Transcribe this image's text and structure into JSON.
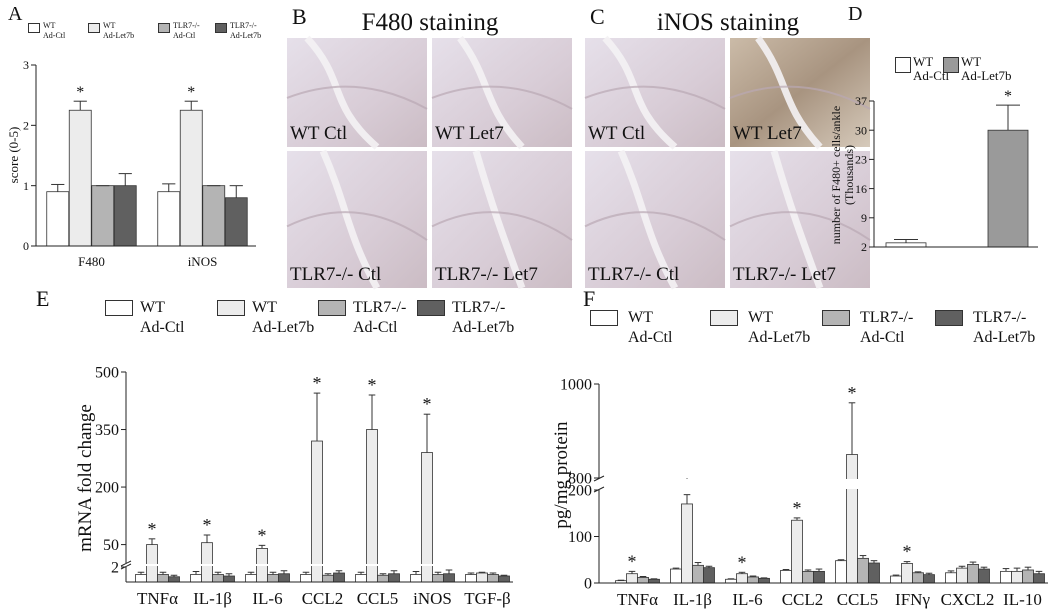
{
  "chart_data": [
    {
      "type": "bar",
      "label": "A",
      "ylabel": "score (0-5)",
      "categories": [
        "F480",
        "iNOS"
      ],
      "ylim": [
        0,
        3
      ],
      "yticks": [
        0,
        1,
        2,
        3
      ],
      "series": [
        {
          "name": "WT\nAd-Ctl",
          "color": "#ffffff",
          "values": [
            0.9,
            0.9
          ],
          "errors": [
            0.12,
            0.13
          ]
        },
        {
          "name": "WT\nAd-Let7b",
          "color": "#ececec",
          "values": [
            2.25,
            2.25
          ],
          "errors": [
            0.15,
            0.15
          ],
          "significance": [
            "*",
            "*"
          ]
        },
        {
          "name": "TLR7-/-\nAd-Ctl",
          "color": "#b4b4b4",
          "values": [
            1.0,
            1.0
          ],
          "errors": [
            0,
            0
          ]
        },
        {
          "name": "TLR7-/-\nAd-Let7b",
          "color": "#606060",
          "values": [
            1.0,
            0.8
          ],
          "errors": [
            0.2,
            0.2
          ]
        }
      ]
    },
    {
      "type": "bar",
      "label": "D",
      "ylabel": "number of F480+ cells/ankle\n(Thousands)",
      "categories": [
        null
      ],
      "ylim": [
        2,
        37
      ],
      "yticks": [
        2,
        9,
        16,
        23,
        30,
        37
      ],
      "series": [
        {
          "name": "WT\nAd-Ctl",
          "color": "#ffffff",
          "values": [
            3
          ],
          "errors": [
            0.8
          ]
        },
        {
          "name": "WT\nAd-Let7b",
          "color": "#9a9a9a",
          "values": [
            30
          ],
          "errors": [
            6
          ],
          "significance": [
            "*"
          ]
        }
      ]
    },
    {
      "type": "bar",
      "label": "E",
      "ylabel": "mRNA fold change",
      "categories": [
        "TNFα",
        "IL-1β",
        "IL-6",
        "CCL2",
        "CCL5",
        "iNOS",
        "TGF-β"
      ],
      "ylim": [
        0,
        500
      ],
      "ybreak": [
        2,
        2
      ],
      "yticks": [
        2,
        50,
        200,
        350,
        500
      ],
      "series": [
        {
          "name": "WT\nAd-Ctl",
          "color": "#ffffff",
          "values": [
            1,
            1,
            1,
            1,
            1,
            1,
            1
          ],
          "errors": [
            0.3,
            0.4,
            0.3,
            0.3,
            0.3,
            0.4,
            0.2
          ]
        },
        {
          "name": "WT\nAd-Let7b",
          "color": "#ececec",
          "values": [
            50,
            55,
            40,
            320,
            350,
            290,
            1.2
          ],
          "errors": [
            15,
            20,
            8,
            125,
            90,
            100,
            0.1
          ],
          "significance": [
            "*",
            "*",
            "*",
            "*",
            "*",
            "*",
            null
          ]
        },
        {
          "name": "TLR7-/-\nAd-Ctl",
          "color": "#b4b4b4",
          "values": [
            1,
            1,
            1,
            0.9,
            0.9,
            1,
            1
          ],
          "errors": [
            0.3,
            0.3,
            0.3,
            0.2,
            0.2,
            0.3,
            0.2
          ]
        },
        {
          "name": "TLR7-/-\nAd-Let7b",
          "color": "#606060",
          "values": [
            0.7,
            0.8,
            1.1,
            1.2,
            1.1,
            1.1,
            0.8
          ],
          "errors": [
            0.2,
            0.3,
            0.4,
            0.3,
            0.4,
            0.5,
            0.1
          ]
        }
      ]
    },
    {
      "type": "bar",
      "label": "F",
      "ylabel": "pg/mg protein",
      "categories": [
        "TNFα",
        "IL-1β",
        "IL-6",
        "CCL2",
        "CCL5",
        "IFNγ",
        "CXCL2",
        "IL-10"
      ],
      "ylim": [
        0,
        1000
      ],
      "ybreak": [
        200,
        800
      ],
      "yticks": [
        0,
        100,
        200,
        800,
        1000
      ],
      "series": [
        {
          "name": "WT\nAd-Ctl",
          "color": "#ffffff",
          "values": [
            5,
            30,
            8,
            27,
            48,
            15,
            22,
            25
          ],
          "errors": [
            1,
            2,
            1,
            2,
            2,
            2,
            4,
            6
          ]
        },
        {
          "name": "WT\nAd-Let7b",
          "color": "#ececec",
          "values": [
            20,
            170,
            20,
            135,
            850,
            42,
            32,
            25
          ],
          "errors": [
            5,
            20,
            3,
            5,
            110,
            4,
            4,
            7
          ],
          "significance": [
            "*",
            "*",
            "*",
            "*",
            "*",
            "*",
            null,
            null
          ]
        },
        {
          "name": "TLR7-/-\nAd-Ctl",
          "color": "#b4b4b4",
          "values": [
            12,
            38,
            13,
            25,
            53,
            22,
            40,
            28
          ],
          "errors": [
            2,
            6,
            2,
            3,
            6,
            2,
            5,
            6
          ]
        },
        {
          "name": "TLR7-/-\nAd-Let7b",
          "color": "#606060",
          "values": [
            8,
            33,
            10,
            25,
            43,
            18,
            30,
            20
          ],
          "errors": [
            1,
            3,
            1,
            5,
            5,
            3,
            4,
            5
          ]
        }
      ]
    }
  ],
  "image_panels": [
    {
      "label": "B",
      "title": "F480 staining",
      "images": [
        "WT Ctl",
        "WT Let7",
        "TLR7-/- Ctl",
        "TLR7-/- Let7"
      ]
    },
    {
      "label": "C",
      "title": "iNOS staining",
      "images": [
        "WT Ctl",
        "WT Let7",
        "TLR7-/- Ctl",
        "TLR7-/- Let7"
      ]
    }
  ]
}
